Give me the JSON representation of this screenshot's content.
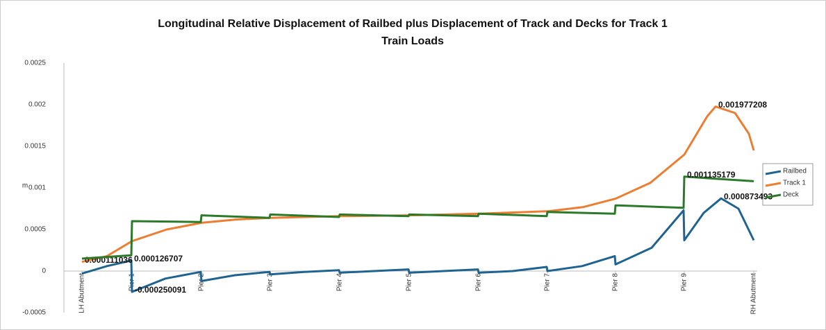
{
  "chart_data": {
    "type": "line",
    "title": "Longitudinal Relative Displacement of Railbed plus Displacement of Track and Decks for Track 1",
    "subtitle": "Train Loads",
    "y_label": "m",
    "ylim": [
      -0.0005,
      0.0025
    ],
    "yticks": [
      0.0025,
      0.002,
      0.0015,
      0.001,
      0.0005,
      0,
      -0.0005
    ],
    "xlim": [
      0,
      967
    ],
    "xticks": [
      {
        "value": 0,
        "label": "LH Abutment"
      },
      {
        "value": 72,
        "label": "Pier 1"
      },
      {
        "value": 172,
        "label": "Pier 2"
      },
      {
        "value": 271,
        "label": "Pier 3"
      },
      {
        "value": 371,
        "label": "Pier 4"
      },
      {
        "value": 471,
        "label": "Pier 5"
      },
      {
        "value": 571,
        "label": "Pier 6"
      },
      {
        "value": 670,
        "label": "Pier 7"
      },
      {
        "value": 768,
        "label": "Pier 8"
      },
      {
        "value": 867,
        "label": "Pier 9"
      },
      {
        "value": 967,
        "label": "RH Abutment"
      }
    ],
    "grid": false,
    "legend": "right",
    "series": [
      {
        "name": "Railbed",
        "color": "#1f6391",
        "x": [
          0,
          36,
          71,
          72,
          120,
          171,
          172,
          220,
          270,
          271,
          320,
          370,
          371,
          420,
          470,
          471,
          520,
          570,
          571,
          620,
          669,
          670,
          720,
          767,
          768,
          820,
          866,
          867,
          895,
          920,
          945,
          967
        ],
        "values": [
          -3e-05,
          6e-05,
          0.000126707,
          -0.000250091,
          -9e-05,
          -1e-05,
          -0.00012,
          -5e-05,
          -1e-05,
          -4e-05,
          -1e-05,
          1e-05,
          -2e-05,
          0,
          2e-05,
          -2e-05,
          0,
          2e-05,
          -2e-05,
          0,
          5e-05,
          0,
          6e-05,
          0.00018,
          8e-05,
          0.00028,
          0.00073,
          0.00037,
          0.0007,
          0.000873493,
          0.00075,
          0.00037
        ],
        "value_labels": [
          null,
          null,
          "0.000126707",
          "-0.000250091",
          null,
          null,
          null,
          null,
          null,
          null,
          null,
          null,
          null,
          null,
          null,
          null,
          null,
          null,
          null,
          null,
          null,
          null,
          null,
          null,
          null,
          null,
          null,
          null,
          null,
          "0.000873493",
          null,
          null
        ]
      },
      {
        "name": "Track 1",
        "color": "#ed7d31",
        "x": [
          0,
          36,
          72,
          122,
          172,
          222,
          272,
          372,
          472,
          572,
          672,
          722,
          768,
          818,
          867,
          900,
          912,
          940,
          960,
          967
        ],
        "values": [
          0.000111036,
          0.00018,
          0.00036,
          0.0005,
          0.00058,
          0.00062,
          0.00064,
          0.00066,
          0.00067,
          0.00069,
          0.00072,
          0.00077,
          0.00087,
          0.00106,
          0.0014,
          0.00186,
          0.001977208,
          0.0019,
          0.00165,
          0.00145
        ],
        "value_labels": [
          "0.000111036",
          null,
          null,
          null,
          null,
          null,
          null,
          null,
          null,
          null,
          null,
          null,
          null,
          null,
          null,
          null,
          "0.001977208",
          null,
          null,
          null
        ]
      },
      {
        "name": "Deck",
        "color": "#2a7a2a",
        "x": [
          0,
          71,
          72,
          171,
          172,
          270,
          271,
          370,
          371,
          470,
          471,
          570,
          571,
          669,
          670,
          767,
          768,
          866,
          867,
          967
        ],
        "values": [
          0.00015,
          0.00019,
          0.0006,
          0.00059,
          0.00067,
          0.00064,
          0.00068,
          0.00065,
          0.00068,
          0.00066,
          0.00068,
          0.00066,
          0.00069,
          0.00066,
          0.00071,
          0.00069,
          0.00079,
          0.00076,
          0.001135179,
          0.00108
        ],
        "value_labels": [
          null,
          null,
          null,
          null,
          null,
          null,
          null,
          null,
          null,
          null,
          null,
          null,
          null,
          null,
          null,
          null,
          null,
          null,
          "0.001135179",
          null
        ]
      }
    ]
  }
}
